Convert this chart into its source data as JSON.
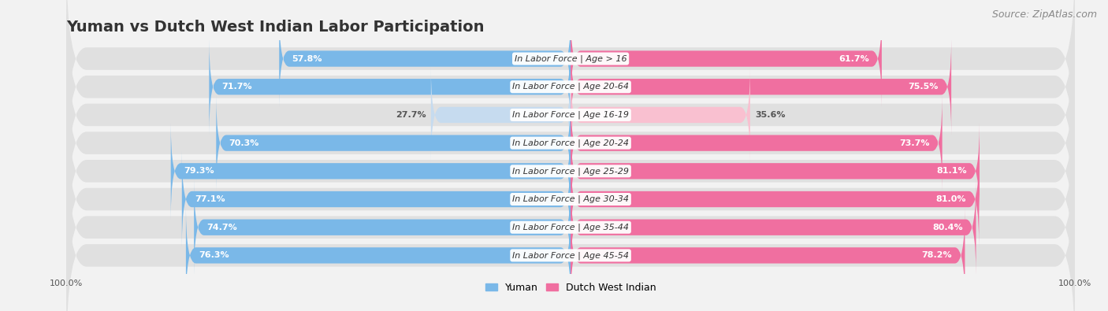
{
  "title": "Yuman vs Dutch West Indian Labor Participation",
  "source": "Source: ZipAtlas.com",
  "categories": [
    "In Labor Force | Age > 16",
    "In Labor Force | Age 20-64",
    "In Labor Force | Age 16-19",
    "In Labor Force | Age 20-24",
    "In Labor Force | Age 25-29",
    "In Labor Force | Age 30-34",
    "In Labor Force | Age 35-44",
    "In Labor Force | Age 45-54"
  ],
  "yuman_values": [
    57.8,
    71.7,
    27.7,
    70.3,
    79.3,
    77.1,
    74.7,
    76.3
  ],
  "dutch_values": [
    61.7,
    75.5,
    35.6,
    73.7,
    81.1,
    81.0,
    80.4,
    78.2
  ],
  "yuman_color_strong": "#7ab8e8",
  "yuman_color_light": "#c6dbef",
  "dutch_color_strong": "#f06fa0",
  "dutch_color_light": "#f9c0d0",
  "bg_color": "#f2f2f2",
  "row_bg_color": "#e0e0e0",
  "bar_height": 0.55,
  "legend_labels": [
    "Yuman",
    "Dutch West Indian"
  ],
  "title_fontsize": 14,
  "source_fontsize": 9,
  "label_fontsize": 8,
  "value_fontsize": 8
}
